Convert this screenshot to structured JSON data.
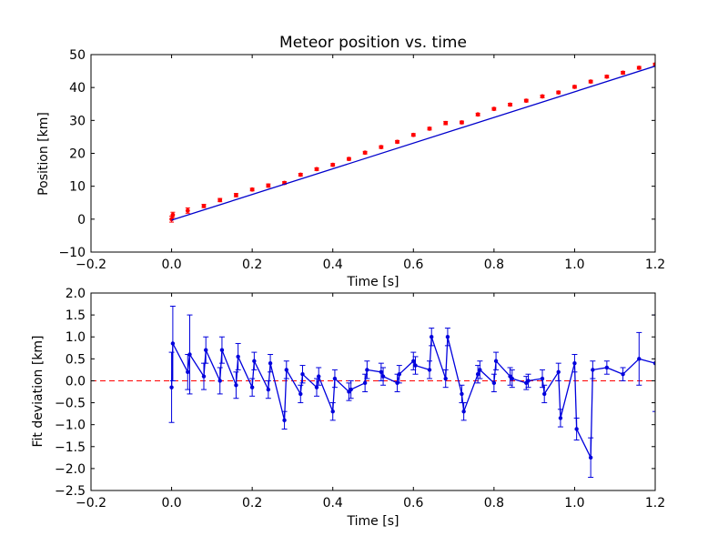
{
  "figure": {
    "background": "#ffffff"
  },
  "chart_data": [
    {
      "type": "scatter",
      "title": "Meteor position vs. time",
      "xlabel": "Time [s]",
      "ylabel": "Position [km]",
      "xlim": [
        -0.2,
        1.2
      ],
      "ylim": [
        -10,
        50
      ],
      "xticks": [
        -0.2,
        0.0,
        0.2,
        0.4,
        0.6,
        0.8,
        1.0,
        1.2
      ],
      "xtick_labels": [
        "−0.2",
        "0.0",
        "0.2",
        "0.4",
        "0.6",
        "0.8",
        "1.0",
        "1.2"
      ],
      "yticks": [
        -10,
        0,
        10,
        20,
        30,
        40,
        50
      ],
      "ytick_labels": [
        "−10",
        "0",
        "10",
        "20",
        "30",
        "40",
        "50"
      ],
      "grid": false,
      "series": [
        {
          "kind": "errorbar-points",
          "color": "#ff0000",
          "x": [
            0.0,
            0.003,
            0.04,
            0.08,
            0.12,
            0.16,
            0.2,
            0.24,
            0.28,
            0.32,
            0.36,
            0.4,
            0.44,
            0.48,
            0.52,
            0.56,
            0.6,
            0.64,
            0.68,
            0.72,
            0.76,
            0.8,
            0.84,
            0.88,
            0.92,
            0.96,
            1.0,
            1.04,
            1.08,
            1.12,
            1.16,
            1.2
          ],
          "y": [
            0.0,
            1.3,
            2.6,
            4.0,
            5.8,
            7.3,
            9.0,
            10.2,
            11.0,
            13.5,
            15.2,
            16.5,
            18.3,
            20.2,
            21.9,
            23.5,
            25.6,
            27.5,
            29.2,
            29.4,
            31.8,
            33.5,
            34.8,
            36.0,
            37.3,
            38.5,
            40.2,
            41.8,
            43.3,
            44.5,
            46.0,
            47.0
          ],
          "yerr": [
            0.9,
            0.8,
            0.8,
            0.5,
            0.5,
            0.5,
            0.4,
            0.5,
            0.4,
            0.4,
            0.4,
            0.4,
            0.4,
            0.4,
            0.4,
            0.4,
            0.4,
            0.4,
            0.5,
            0.4,
            0.4,
            0.4,
            0.4,
            0.4,
            0.4,
            0.4,
            0.4,
            0.4,
            0.4,
            0.4,
            0.4,
            0.4
          ]
        },
        {
          "kind": "fit-line",
          "color": "#0000cc",
          "x": [
            0.0,
            1.2
          ],
          "y": [
            -0.3,
            46.5
          ]
        }
      ]
    },
    {
      "type": "line",
      "title": "",
      "xlabel": "Time [s]",
      "ylabel": "Fit deviation [km]",
      "xlim": [
        -0.2,
        1.2
      ],
      "ylim": [
        -2.5,
        2.0
      ],
      "xticks": [
        -0.2,
        0.0,
        0.2,
        0.4,
        0.6,
        0.8,
        1.0,
        1.2
      ],
      "xtick_labels": [
        "−0.2",
        "0.0",
        "0.2",
        "0.4",
        "0.6",
        "0.8",
        "1.0",
        "1.2"
      ],
      "yticks": [
        -2.5,
        -2.0,
        -1.5,
        -1.0,
        -0.5,
        0.0,
        0.5,
        1.0,
        1.5,
        2.0
      ],
      "ytick_labels": [
        "−2.5",
        "−2.0",
        "−1.5",
        "−1.0",
        "−0.5",
        "0.0",
        "0.5",
        "1.0",
        "1.5",
        "2.0"
      ],
      "grid": false,
      "reference_line": {
        "y": 0.0,
        "color": "#ff0000",
        "style": "dashed"
      },
      "series": [
        {
          "kind": "errorbar-line",
          "color": "#0000dd",
          "x": [
            0.0,
            0.003,
            0.04,
            0.045,
            0.08,
            0.085,
            0.12,
            0.125,
            0.16,
            0.165,
            0.2,
            0.205,
            0.24,
            0.245,
            0.28,
            0.285,
            0.32,
            0.325,
            0.36,
            0.365,
            0.4,
            0.405,
            0.44,
            0.445,
            0.48,
            0.485,
            0.52,
            0.525,
            0.56,
            0.565,
            0.6,
            0.605,
            0.64,
            0.645,
            0.68,
            0.685,
            0.72,
            0.725,
            0.76,
            0.765,
            0.8,
            0.805,
            0.84,
            0.845,
            0.88,
            0.885,
            0.92,
            0.925,
            0.96,
            0.965,
            1.0,
            1.005,
            1.04,
            1.045,
            1.08,
            1.12,
            1.16,
            1.2
          ],
          "y": [
            -0.15,
            0.85,
            0.2,
            0.6,
            0.1,
            0.7,
            0.0,
            0.7,
            -0.1,
            0.55,
            -0.15,
            0.45,
            -0.2,
            0.4,
            -0.9,
            0.25,
            -0.3,
            0.15,
            -0.15,
            0.1,
            -0.7,
            0.05,
            -0.25,
            -0.2,
            -0.05,
            0.25,
            0.2,
            0.1,
            -0.05,
            0.15,
            0.45,
            0.35,
            0.25,
            1.0,
            0.05,
            1.0,
            -0.3,
            -0.7,
            0.15,
            0.25,
            -0.05,
            0.45,
            0.1,
            0.05,
            -0.05,
            0.0,
            0.05,
            -0.3,
            0.2,
            -0.85,
            0.4,
            -1.1,
            -1.75,
            0.25,
            0.3,
            0.15,
            0.5,
            0.4
          ],
          "yerr": [
            0.8,
            0.85,
            0.4,
            0.9,
            0.3,
            0.3,
            0.3,
            0.3,
            0.3,
            0.3,
            0.2,
            0.2,
            0.2,
            0.2,
            0.2,
            0.2,
            0.2,
            0.2,
            0.2,
            0.2,
            0.2,
            0.2,
            0.2,
            0.2,
            0.2,
            0.2,
            0.2,
            0.2,
            0.2,
            0.2,
            0.2,
            0.2,
            0.2,
            0.2,
            0.2,
            0.2,
            0.2,
            0.2,
            0.2,
            0.2,
            0.2,
            0.2,
            0.2,
            0.2,
            0.15,
            0.15,
            0.2,
            0.2,
            0.2,
            0.2,
            0.2,
            0.25,
            0.45,
            0.2,
            0.15,
            0.15,
            0.6,
            1.1
          ]
        }
      ]
    }
  ]
}
